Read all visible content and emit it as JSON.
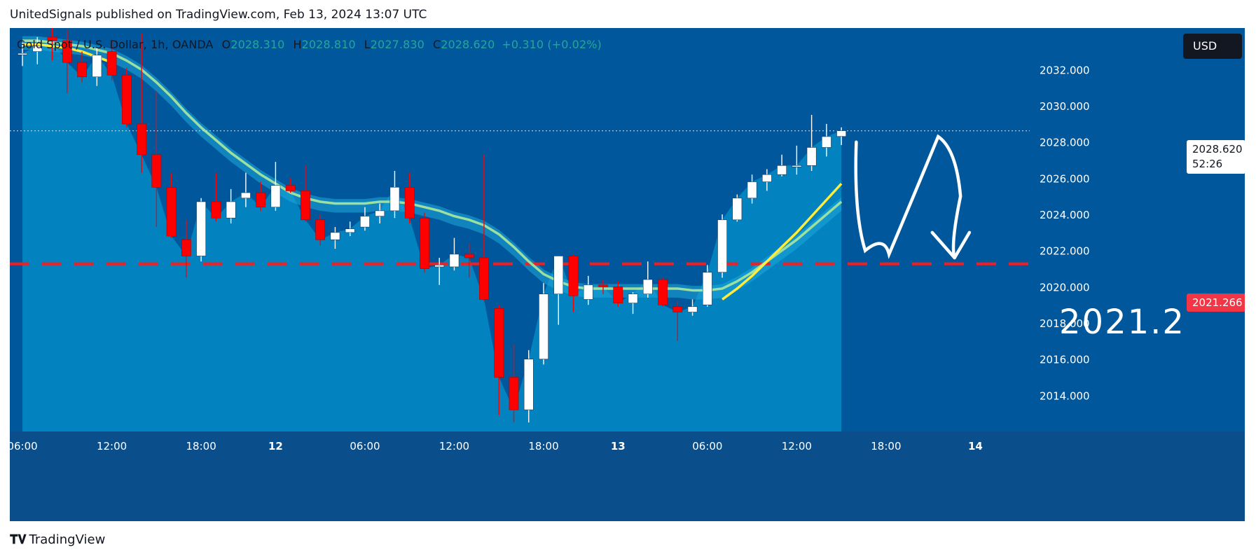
{
  "publisher_line": "UnitedSignals published on TradingView.com, Feb 13, 2024 13:07 UTC",
  "symbol_title": "Gold Spot / U.S. Dollar, 1h, OANDA",
  "ohlc": {
    "o_label": "O",
    "o_value": "2028.310",
    "h_label": "H",
    "h_value": "2028.810",
    "l_label": "L",
    "l_value": "2027.830",
    "c_label": "C",
    "c_value": "2028.620",
    "change": "+0.310 (+0.02%)"
  },
  "currency_button": "USD",
  "last_price": {
    "value": "2028.620",
    "countdown": "52:26"
  },
  "level_price": "2021.266",
  "target_annotation": "2021.2",
  "logo_text": "TradingView",
  "colors": {
    "background": "#01579b",
    "area_fill": "#0288c4",
    "up_candle": "#ffffff",
    "down_candle": "#ff0000",
    "ma_fast": "#ffeb3b",
    "ma_slow": "#9be0a0",
    "level_line": "#ff1a1a",
    "arrow": "#ffffff"
  },
  "chart_data": {
    "type": "candlestick",
    "symbol": "Gold Spot / U.S. Dollar",
    "timeframe": "1h",
    "exchange": "OANDA",
    "x_tick_labels": [
      "06:00",
      "12:00",
      "18:00",
      "12",
      "06:00",
      "12:00",
      "18:00",
      "13",
      "06:00",
      "12:00",
      "18:00",
      "14"
    ],
    "x_tick_index": [
      0,
      6,
      12,
      17,
      23,
      29,
      35,
      40,
      46,
      52,
      58,
      64
    ],
    "y_tick_labels": [
      "2014.000",
      "2016.000",
      "2018.000",
      "2020.000",
      "2022.000",
      "2024.000",
      "2026.000",
      "2028.000",
      "2030.000",
      "2032.000"
    ],
    "ylim": [
      2012.0,
      2034.3
    ],
    "x_start_index": -0.85,
    "bars_visible": 68.5,
    "candles": [
      {
        "o": 2032.9,
        "h": 2033.5,
        "l": 2032.2,
        "c": 2032.9
      },
      {
        "o": 2033.0,
        "h": 2033.8,
        "l": 2032.3,
        "c": 2033.3
      },
      {
        "o": 2033.8,
        "h": 2034.3,
        "l": 2032.5,
        "c": 2033.6
      },
      {
        "o": 2033.6,
        "h": 2034.2,
        "l": 2030.7,
        "c": 2032.4
      },
      {
        "o": 2032.4,
        "h": 2033.0,
        "l": 2031.3,
        "c": 2031.6
      },
      {
        "o": 2031.6,
        "h": 2033.2,
        "l": 2031.1,
        "c": 2032.8
      },
      {
        "o": 2033.0,
        "h": 2033.6,
        "l": 2031.4,
        "c": 2031.7
      },
      {
        "o": 2031.7,
        "h": 2032.1,
        "l": 2028.8,
        "c": 2029.0
      },
      {
        "o": 2029.0,
        "h": 2034.0,
        "l": 2026.3,
        "c": 2027.3
      },
      {
        "o": 2027.3,
        "h": 2030.8,
        "l": 2023.3,
        "c": 2025.5
      },
      {
        "o": 2025.5,
        "h": 2026.3,
        "l": 2022.7,
        "c": 2022.8
      },
      {
        "o": 2022.6,
        "h": 2023.7,
        "l": 2020.5,
        "c": 2021.7
      },
      {
        "o": 2021.7,
        "h": 2024.9,
        "l": 2021.4,
        "c": 2024.7
      },
      {
        "o": 2024.7,
        "h": 2026.3,
        "l": 2023.6,
        "c": 2023.8
      },
      {
        "o": 2023.8,
        "h": 2025.4,
        "l": 2023.5,
        "c": 2024.7
      },
      {
        "o": 2024.9,
        "h": 2026.3,
        "l": 2024.4,
        "c": 2025.2
      },
      {
        "o": 2025.2,
        "h": 2025.8,
        "l": 2024.2,
        "c": 2024.4
      },
      {
        "o": 2024.4,
        "h": 2026.9,
        "l": 2024.2,
        "c": 2025.6
      },
      {
        "o": 2025.6,
        "h": 2026.0,
        "l": 2025.2,
        "c": 2025.3
      },
      {
        "o": 2025.3,
        "h": 2026.7,
        "l": 2023.6,
        "c": 2023.7
      },
      {
        "o": 2023.7,
        "h": 2024.0,
        "l": 2022.3,
        "c": 2022.6
      },
      {
        "o": 2022.6,
        "h": 2023.3,
        "l": 2022.1,
        "c": 2023.0
      },
      {
        "o": 2023.0,
        "h": 2023.6,
        "l": 2022.8,
        "c": 2023.2
      },
      {
        "o": 2023.3,
        "h": 2024.4,
        "l": 2023.1,
        "c": 2023.9
      },
      {
        "o": 2023.9,
        "h": 2024.6,
        "l": 2023.5,
        "c": 2024.2
      },
      {
        "o": 2024.2,
        "h": 2026.4,
        "l": 2023.8,
        "c": 2025.5
      },
      {
        "o": 2025.5,
        "h": 2026.3,
        "l": 2023.5,
        "c": 2023.8
      },
      {
        "o": 2023.8,
        "h": 2024.1,
        "l": 2020.8,
        "c": 2021.0
      },
      {
        "o": 2021.1,
        "h": 2021.6,
        "l": 2020.1,
        "c": 2021.2
      },
      {
        "o": 2021.1,
        "h": 2022.7,
        "l": 2020.9,
        "c": 2021.8
      },
      {
        "o": 2021.8,
        "h": 2022.4,
        "l": 2020.5,
        "c": 2021.6
      },
      {
        "o": 2021.6,
        "h": 2027.3,
        "l": 2019.2,
        "c": 2019.3
      },
      {
        "o": 2018.8,
        "h": 2019.0,
        "l": 2012.9,
        "c": 2015.0
      },
      {
        "o": 2015.0,
        "h": 2016.8,
        "l": 2012.5,
        "c": 2013.2
      },
      {
        "o": 2013.2,
        "h": 2016.5,
        "l": 2012.5,
        "c": 2016.0
      },
      {
        "o": 2016.0,
        "h": 2020.2,
        "l": 2015.7,
        "c": 2019.6
      },
      {
        "o": 2019.6,
        "h": 2021.7,
        "l": 2017.9,
        "c": 2021.7
      },
      {
        "o": 2021.7,
        "h": 2021.8,
        "l": 2018.6,
        "c": 2019.5
      },
      {
        "o": 2019.3,
        "h": 2020.6,
        "l": 2019.0,
        "c": 2020.1
      },
      {
        "o": 2020.1,
        "h": 2020.4,
        "l": 2019.6,
        "c": 2020.0
      },
      {
        "o": 2020.0,
        "h": 2020.3,
        "l": 2018.9,
        "c": 2019.1
      },
      {
        "o": 2019.1,
        "h": 2019.7,
        "l": 2018.5,
        "c": 2019.6
      },
      {
        "o": 2019.6,
        "h": 2021.4,
        "l": 2019.4,
        "c": 2020.4
      },
      {
        "o": 2020.4,
        "h": 2020.5,
        "l": 2018.9,
        "c": 2019.0
      },
      {
        "o": 2018.9,
        "h": 2019.2,
        "l": 2017.0,
        "c": 2018.6
      },
      {
        "o": 2018.6,
        "h": 2019.3,
        "l": 2018.4,
        "c": 2018.9
      },
      {
        "o": 2019.0,
        "h": 2021.2,
        "l": 2018.9,
        "c": 2020.8
      },
      {
        "o": 2020.8,
        "h": 2024.0,
        "l": 2020.5,
        "c": 2023.7
      },
      {
        "o": 2023.7,
        "h": 2025.1,
        "l": 2023.6,
        "c": 2024.9
      },
      {
        "o": 2024.9,
        "h": 2026.2,
        "l": 2024.6,
        "c": 2025.8
      },
      {
        "o": 2025.8,
        "h": 2026.5,
        "l": 2025.3,
        "c": 2026.2
      },
      {
        "o": 2026.2,
        "h": 2027.3,
        "l": 2026.1,
        "c": 2026.7
      },
      {
        "o": 2026.7,
        "h": 2027.8,
        "l": 2026.2,
        "c": 2026.7
      },
      {
        "o": 2026.7,
        "h": 2029.5,
        "l": 2026.4,
        "c": 2027.7
      },
      {
        "o": 2027.7,
        "h": 2029.0,
        "l": 2027.2,
        "c": 2028.3
      },
      {
        "o": 2028.31,
        "h": 2028.81,
        "l": 2027.83,
        "c": 2028.62
      }
    ],
    "ma_fast": [
      2033.4,
      2033.4,
      2033.3,
      2033.2,
      2033.0,
      2032.7,
      2032.4,
      2031.9,
      2031.3,
      2030.6,
      2029.8,
      2028.9,
      2028.2,
      2027.6,
      2027.0,
      2026.5,
      2026.0,
      2025.6,
      2025.2,
      2024.8,
      2024.5,
      2024.3,
      2024.2,
      2024.2,
      2024.2,
      2024.1,
      2024.0,
      2023.8,
      2023.5,
      2023.3,
      2023.1,
      2022.8,
      2022.2,
      2021.3,
      2020.4,
      2019.6,
      2019.0,
      2018.6,
      2018.4,
      2018.3,
      2018.2,
      2018.2,
      2018.2,
      2018.2,
      2018.3,
      2018.5,
      2018.8,
      2019.3,
      2019.9,
      2020.6,
      2021.4,
      2022.2,
      2023.0,
      2023.9,
      2024.8,
      2025.7
    ],
    "ma_slow": [
      2033.6,
      2033.6,
      2033.5,
      2033.4,
      2033.3,
      2033.1,
      2032.9,
      2032.5,
      2032.0,
      2031.3,
      2030.5,
      2029.6,
      2028.8,
      2028.1,
      2027.4,
      2026.8,
      2026.2,
      2025.7,
      2025.2,
      2024.9,
      2024.7,
      2024.6,
      2024.6,
      2024.6,
      2024.7,
      2024.7,
      2024.6,
      2024.4,
      2024.2,
      2023.9,
      2023.7,
      2023.4,
      2022.9,
      2022.2,
      2021.4,
      2020.7,
      2020.3,
      2020.0,
      2019.9,
      2019.9,
      2019.9,
      2019.9,
      2019.9,
      2019.9,
      2019.9,
      2019.8,
      2019.8,
      2019.9,
      2020.3,
      2020.8,
      2021.4,
      2022.0,
      2022.6,
      2023.3,
      2024.0,
      2024.7
    ],
    "level": 2021.266,
    "projection_path": [
      [
        56.0,
        2028.0
      ],
      [
        56.6,
        2022.0
      ],
      [
        58.2,
        2021.8
      ],
      [
        61.5,
        2028.3
      ],
      [
        63.0,
        2025.0
      ],
      [
        62.6,
        2021.6
      ]
    ],
    "projection_arrowhead": [
      [
        61.1,
        2023.0
      ],
      [
        62.6,
        2021.6
      ],
      [
        63.6,
        2023.0
      ]
    ]
  }
}
